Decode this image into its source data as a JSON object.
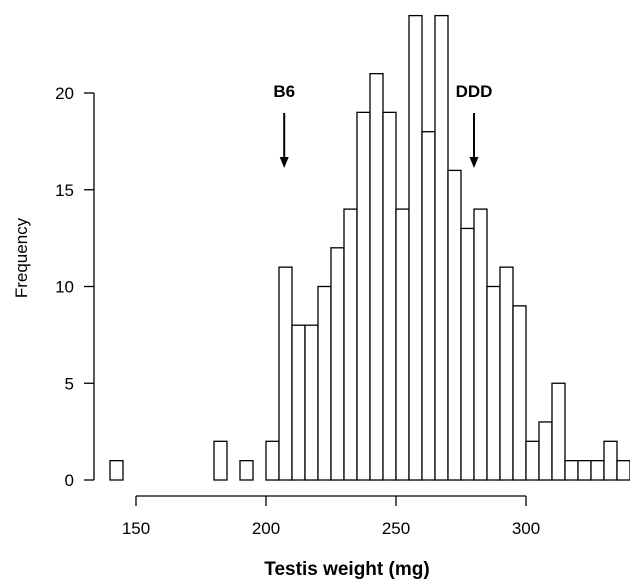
{
  "chart_data": {
    "type": "bar",
    "subtype": "histogram",
    "title": "",
    "xlabel": "Testis weight (mg)",
    "ylabel": "Frequency",
    "bin_width": 5,
    "bins": [
      {
        "start": 140,
        "end": 145,
        "count": 1
      },
      {
        "start": 145,
        "end": 150,
        "count": 0
      },
      {
        "start": 150,
        "end": 155,
        "count": 0
      },
      {
        "start": 155,
        "end": 160,
        "count": 0
      },
      {
        "start": 160,
        "end": 165,
        "count": 0
      },
      {
        "start": 165,
        "end": 170,
        "count": 0
      },
      {
        "start": 170,
        "end": 175,
        "count": 0
      },
      {
        "start": 175,
        "end": 180,
        "count": 0
      },
      {
        "start": 180,
        "end": 185,
        "count": 2
      },
      {
        "start": 185,
        "end": 190,
        "count": 0
      },
      {
        "start": 190,
        "end": 195,
        "count": 1
      },
      {
        "start": 195,
        "end": 200,
        "count": 0
      },
      {
        "start": 200,
        "end": 205,
        "count": 2
      },
      {
        "start": 205,
        "end": 210,
        "count": 11
      },
      {
        "start": 210,
        "end": 215,
        "count": 8
      },
      {
        "start": 215,
        "end": 220,
        "count": 8
      },
      {
        "start": 220,
        "end": 225,
        "count": 10
      },
      {
        "start": 225,
        "end": 230,
        "count": 12
      },
      {
        "start": 230,
        "end": 235,
        "count": 14
      },
      {
        "start": 235,
        "end": 240,
        "count": 19
      },
      {
        "start": 240,
        "end": 245,
        "count": 21
      },
      {
        "start": 245,
        "end": 250,
        "count": 19
      },
      {
        "start": 250,
        "end": 255,
        "count": 14
      },
      {
        "start": 255,
        "end": 260,
        "count": 24
      },
      {
        "start": 260,
        "end": 265,
        "count": 18
      },
      {
        "start": 265,
        "end": 270,
        "count": 24
      },
      {
        "start": 270,
        "end": 275,
        "count": 16
      },
      {
        "start": 275,
        "end": 280,
        "count": 13
      },
      {
        "start": 280,
        "end": 285,
        "count": 14
      },
      {
        "start": 285,
        "end": 290,
        "count": 10
      },
      {
        "start": 290,
        "end": 295,
        "count": 11
      },
      {
        "start": 295,
        "end": 300,
        "count": 9
      },
      {
        "start": 300,
        "end": 305,
        "count": 2
      },
      {
        "start": 305,
        "end": 310,
        "count": 3
      },
      {
        "start": 310,
        "end": 315,
        "count": 5
      },
      {
        "start": 315,
        "end": 320,
        "count": 1
      },
      {
        "start": 320,
        "end": 325,
        "count": 1
      },
      {
        "start": 325,
        "end": 330,
        "count": 1
      },
      {
        "start": 330,
        "end": 335,
        "count": 2
      },
      {
        "start": 335,
        "end": 340,
        "count": 1
      }
    ],
    "xlim": [
      140,
      340
    ],
    "ylim": [
      0,
      24
    ],
    "x_ticks": [
      150,
      200,
      250,
      300
    ],
    "y_ticks": [
      0,
      5,
      10,
      15,
      20
    ],
    "grid": false,
    "legend": "none",
    "annotations": [
      {
        "label": "B6",
        "x": 207,
        "type": "down-arrow"
      },
      {
        "label": "DDD",
        "x": 280,
        "type": "down-arrow"
      }
    ],
    "colors": {
      "bar_fill": "#ffffff",
      "bar_stroke": "#000000",
      "axis": "#000000"
    }
  }
}
